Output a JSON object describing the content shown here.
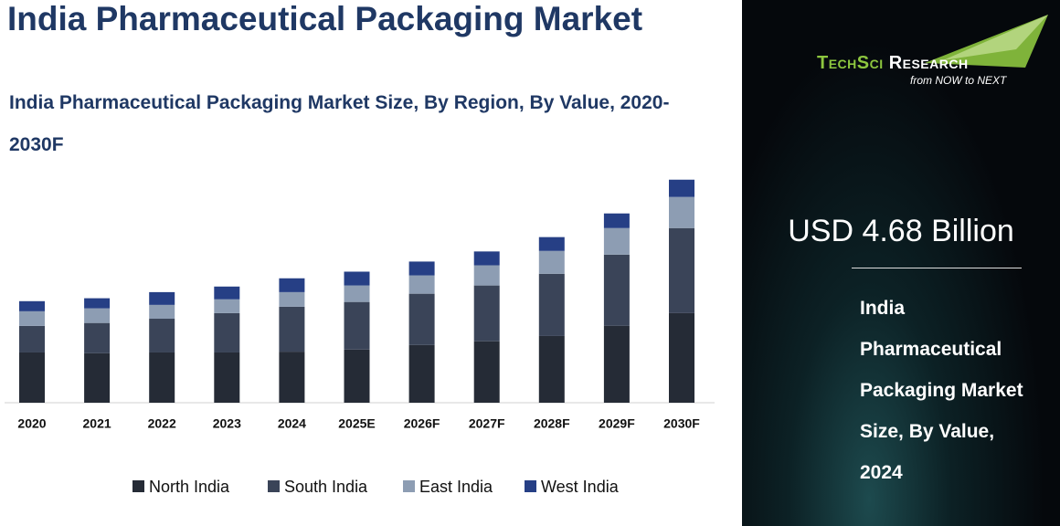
{
  "chart_data": {
    "type": "stacked_bar",
    "title": "India Pharmaceutical Packaging Market",
    "subtitle": "India Pharmaceutical Packaging Market Size, By Region, By Value, 2020-2030F",
    "categories": [
      "2020",
      "2021",
      "2022",
      "2023",
      "2024",
      "2025E",
      "2026F",
      "2027F",
      "2028F",
      "2029F",
      "2030F"
    ],
    "series": [
      {
        "name": "North India",
        "color": "#252b36",
        "values": [
          1.89,
          1.86,
          1.89,
          1.89,
          1.92,
          2.0,
          2.17,
          2.31,
          2.51,
          2.89,
          3.37
        ]
      },
      {
        "name": "South India",
        "color": "#3a4458",
        "values": [
          1.0,
          1.14,
          1.27,
          1.48,
          1.69,
          1.79,
          1.93,
          2.1,
          2.34,
          2.68,
          3.2
        ]
      },
      {
        "name": "East India",
        "color": "#8d9db3",
        "values": [
          0.55,
          0.55,
          0.52,
          0.52,
          0.55,
          0.62,
          0.69,
          0.76,
          0.86,
          1.0,
          1.17
        ]
      },
      {
        "name": "West India",
        "color": "#263f85",
        "values": [
          0.38,
          0.38,
          0.48,
          0.48,
          0.52,
          0.52,
          0.52,
          0.52,
          0.52,
          0.55,
          0.65
        ]
      }
    ],
    "ylim": [
      0,
      9
    ],
    "legend": "bottom"
  },
  "brand": {
    "name_part1": "TechSci",
    "name_part2": "Research",
    "tagline": "from NOW to NEXT"
  },
  "highlight": {
    "value_text": "USD 4.68 Billion",
    "caption_lines": [
      "India",
      "Pharmaceutical",
      "Packaging Market",
      "Size, By Value,",
      "2024"
    ]
  }
}
